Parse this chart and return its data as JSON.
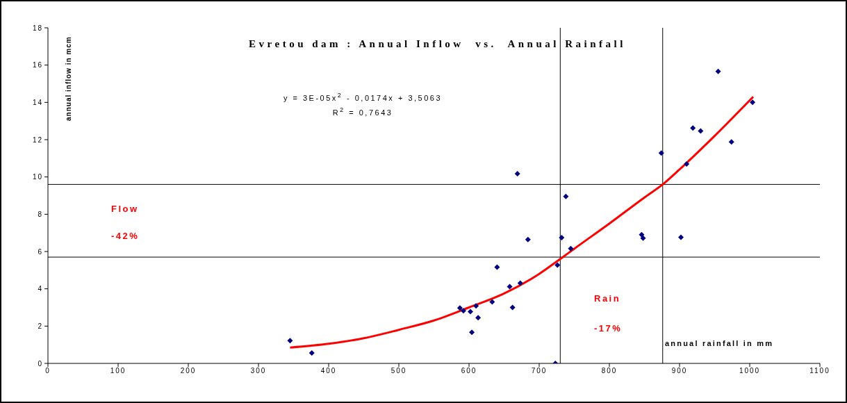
{
  "chart_data": {
    "type": "scatter",
    "title": "Evretou dam : Annual Inflow  vs.  Annual Rainfall",
    "xlabel": "annual rainfall in mm",
    "ylabel": "annual inflow in mcm",
    "xlim": [
      0,
      1100
    ],
    "xticks": [
      0,
      100,
      200,
      300,
      400,
      500,
      600,
      700,
      800,
      900,
      1000,
      1100
    ],
    "ylim": [
      0,
      18
    ],
    "yticks": [
      0,
      2,
      4,
      6,
      8,
      10,
      12,
      14,
      16,
      18
    ],
    "marker": "none",
    "series": [
      {
        "color": "#000080",
        "marker": "diamond",
        "x": [
          345,
          376,
          587,
          592,
          602,
          604,
          610,
          613,
          633,
          640,
          658,
          662,
          673,
          684,
          723,
          726,
          732,
          745,
          669,
          738,
          874,
          846,
          848,
          902,
          910,
          919,
          930,
          955,
          974,
          1004
        ],
        "values": [
          1.22,
          0.56,
          2.97,
          2.82,
          2.78,
          1.67,
          3.08,
          2.45,
          3.3,
          5.16,
          4.12,
          3.0,
          4.3,
          6.64,
          0,
          5.27,
          6.75,
          6.16,
          10.17,
          8.95,
          11.28,
          6.9,
          6.72,
          6.76,
          10.7,
          12.62,
          12.47,
          15.66,
          11.88,
          14.0
        ]
      },
      {
        "type": "line",
        "color": "#ff0000",
        "line_style": "solid",
        "x": [
          345,
          400,
          450,
          500,
          550,
          600,
          650,
          700,
          730,
          750,
          800,
          850,
          876,
          900,
          950,
          1005
        ],
        "values": [
          0.85,
          1.05,
          1.35,
          1.8,
          2.3,
          3.0,
          3.75,
          4.8,
          5.6,
          6.15,
          7.5,
          8.9,
          9.6,
          10.4,
          12.2,
          14.3
        ]
      }
    ],
    "ref_lines": [
      {
        "axis": "y",
        "value": 9.6,
        "color": "#000000"
      },
      {
        "axis": "y",
        "value": 5.7,
        "color": "#000000"
      },
      {
        "axis": "x",
        "value": 730,
        "color": "#000000"
      },
      {
        "axis": "x",
        "value": 876,
        "color": "#000000"
      }
    ],
    "annotations": [
      "y = 3E-05x$^{2}$ - 0,0174x + 3,5063",
      "R$^{2}$ = 0,7643",
      "Flow",
      "-42%",
      "Rain",
      "-17%"
    ]
  }
}
